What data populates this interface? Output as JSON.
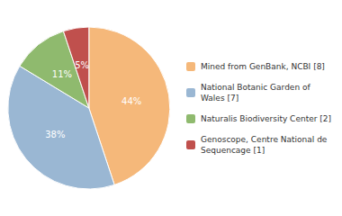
{
  "chart_data": {
    "type": "pie",
    "categories": [
      "Mined from GenBank, NCBI [8]",
      "National Botanic Garden of\nWales [7]",
      "Naturalis Biodiversity Center [2]",
      "Genoscope, Centre National de\nSequencage [1]"
    ],
    "values": [
      44,
      38,
      11,
      5
    ],
    "value_labels": [
      "44%",
      "38%",
      "11%",
      "5%"
    ],
    "colors": [
      "#f5b87a",
      "#9ab7d3",
      "#8fba6e",
      "#c0504d"
    ],
    "data_labels": true,
    "legend": "right"
  }
}
